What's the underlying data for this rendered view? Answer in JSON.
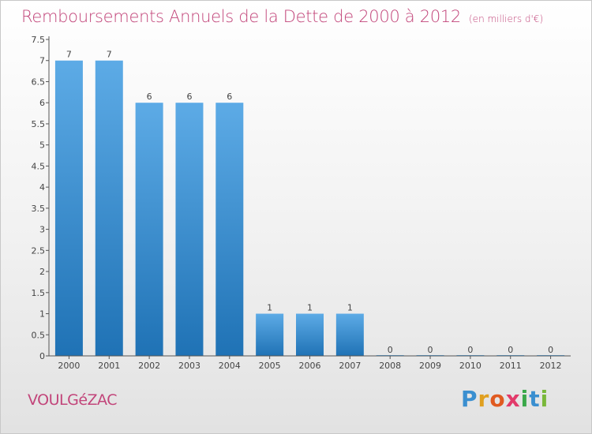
{
  "title": "Remboursements Annuels de la Dette de 2000 à 2012",
  "unit": "(en milliers d'€)",
  "commune": "VOULGéZAC",
  "logo": {
    "letters": [
      "P",
      "r",
      "o",
      "x",
      "i",
      "t",
      "i"
    ],
    "colors": [
      "#3a8fd0",
      "#e0a020",
      "#e05a20",
      "#e23a6a",
      "#3aa84a",
      "#3a8fd0",
      "#7ab83a"
    ]
  },
  "colors": {
    "bar_top": "#5dabe6",
    "bar_bottom": "#1f72b5",
    "title": "#c2457a"
  },
  "chart_data": {
    "type": "bar",
    "title": "Remboursements Annuels de la Dette de 2000 à 2012",
    "xlabel": "",
    "ylabel": "",
    "categories": [
      "2000",
      "2001",
      "2002",
      "2003",
      "2004",
      "2005",
      "2006",
      "2007",
      "2008",
      "2009",
      "2010",
      "2011",
      "2012"
    ],
    "values": [
      7,
      7,
      6,
      6,
      6,
      1,
      1,
      1,
      0,
      0,
      0,
      0,
      0
    ],
    "data_labels": [
      "7",
      "7",
      "6",
      "6",
      "6",
      "1",
      "1",
      "1",
      "0",
      "0",
      "0",
      "0",
      "0"
    ],
    "ylim": [
      0,
      7.5
    ],
    "yticks": [
      0,
      0.5,
      1,
      1.5,
      2,
      2.5,
      3,
      3.5,
      4,
      4.5,
      5,
      5.5,
      6,
      6.5,
      7,
      7.5
    ],
    "ytick_labels": [
      "0",
      "0.5",
      "1",
      "1.5",
      "2",
      "2.5",
      "3",
      "3.5",
      "4",
      "4.5",
      "5",
      "5.5",
      "6",
      "6.5",
      "7",
      "7.5"
    ],
    "grid": false
  }
}
